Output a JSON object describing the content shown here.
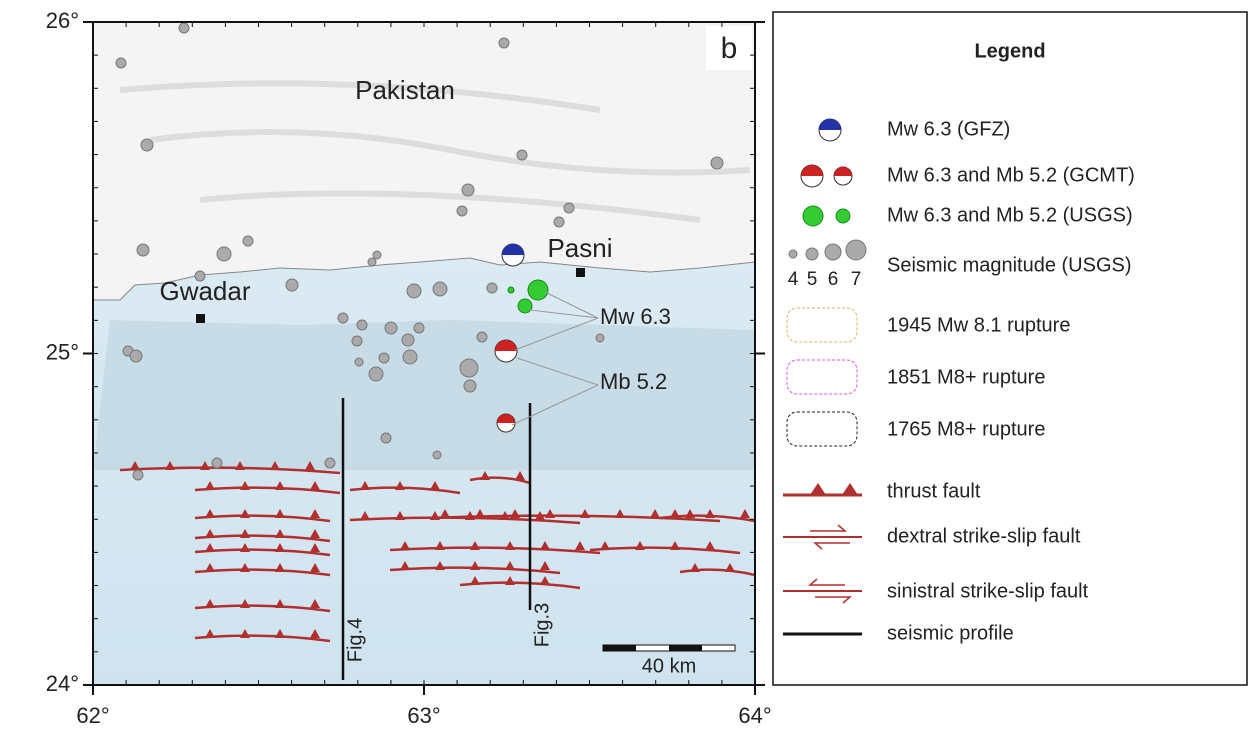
{
  "map": {
    "panel_label": "b",
    "xlim": [
      62,
      64
    ],
    "ylim": [
      24,
      26
    ],
    "xticks": [
      {
        "value": 62,
        "label": "62°"
      },
      {
        "value": 63,
        "label": "63°"
      },
      {
        "value": 64,
        "label": "64°"
      }
    ],
    "yticks": [
      {
        "value": 24,
        "label": "24°"
      },
      {
        "value": 25,
        "label": "25°"
      },
      {
        "value": 26,
        "label": "26°"
      }
    ],
    "places": [
      "Pakistan",
      "Pasni",
      "Gwadar"
    ],
    "annotations": [
      "Mw 6.3",
      "Mb 5.2"
    ],
    "profiles": [
      "Fig.4",
      "Fig.3"
    ],
    "scale_bar": "40 km"
  },
  "legend": {
    "title": "Legend",
    "items": [
      "Mw 6.3 (GFZ)",
      "Mw 6.3 and Mb 5.2 (GCMT)",
      "Mw 6.3 and Mb 5.2 (USGS)",
      "Seismic magnitude (USGS)",
      "1945 Mw 8.1 rupture",
      "1851 M8+ rupture",
      "1765 M8+ rupture",
      "thrust fault",
      "dextral strike-slip fault",
      "sinistral strike-slip fault",
      "seismic profile"
    ],
    "magnitudes": [
      4,
      5,
      6,
      7
    ]
  }
}
